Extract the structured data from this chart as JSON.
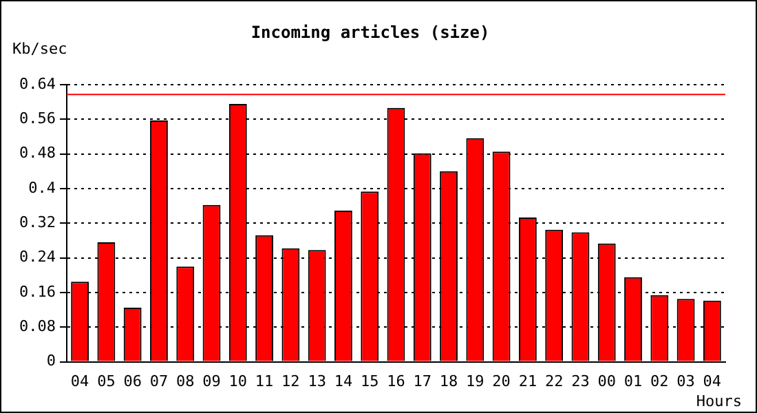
{
  "chart_data": {
    "type": "bar",
    "title": "Incoming articles (size)",
    "ylabel": "Kb/sec",
    "xlabel": "Hours",
    "categories": [
      "04",
      "05",
      "06",
      "07",
      "08",
      "09",
      "10",
      "11",
      "12",
      "13",
      "14",
      "15",
      "16",
      "17",
      "18",
      "19",
      "20",
      "21",
      "22",
      "23",
      "00",
      "01",
      "02",
      "03",
      "04"
    ],
    "values": [
      0.185,
      0.276,
      0.125,
      0.557,
      0.22,
      0.362,
      0.595,
      0.292,
      0.262,
      0.258,
      0.349,
      0.393,
      0.586,
      0.481,
      0.44,
      0.516,
      0.485,
      0.333,
      0.305,
      0.299,
      0.273,
      0.195,
      0.154,
      0.145,
      0.141
    ],
    "color": "#ff0000",
    "ylim": [
      0,
      0.64
    ],
    "yticks": [
      0,
      0.08,
      0.16,
      0.24,
      0.32,
      0.4,
      0.48,
      0.56,
      0.64
    ],
    "grid": "y",
    "ref_lines": [
      {
        "axis": "y",
        "value": 0.617,
        "color": "#ff0000"
      }
    ]
  }
}
